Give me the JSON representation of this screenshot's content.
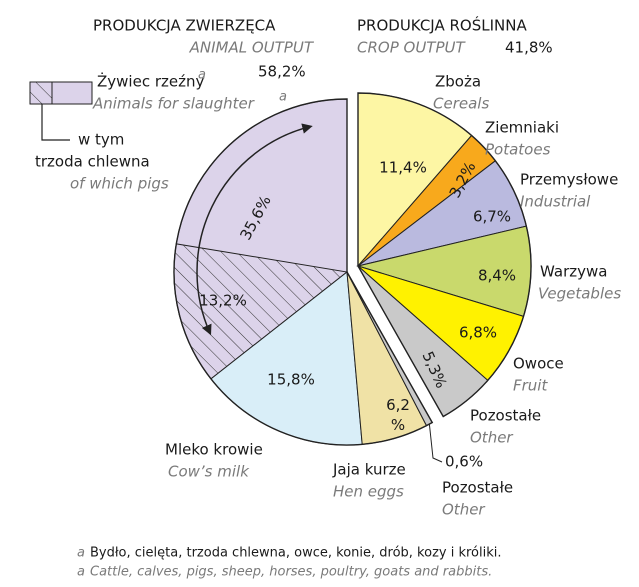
{
  "chart_data": {
    "type": "pie",
    "groups": [
      {
        "title": "PRODUKCJA ZWIERZĘCA",
        "subtitle": "ANIMAL OUTPUT",
        "value": 58.2,
        "value_label": "58,2%",
        "categories": [
          "Żywiec rzeźny",
          "Mleko krowie",
          "Jaja kurze",
          "Pozostałe"
        ],
        "categories_en": [
          "Animals for slaughter",
          "Cow’s milk",
          "Hen eggs",
          "Other"
        ],
        "values": [
          35.6,
          15.8,
          6.2,
          0.6
        ],
        "value_labels": [
          "35,6%",
          "15,8%",
          "6,2\n%",
          "0,6%"
        ],
        "colors": [
          "#dcd3ea",
          "#d9eef8",
          "#f0e2a6",
          "#c9c9c9"
        ],
        "sub": {
          "labels": [
            "w tym",
            "trzoda chlewna"
          ],
          "label_en": "of which pigs",
          "value": 13.2,
          "value_label": "13,2%"
        }
      },
      {
        "title": "PRODUKCJA ROŚLINNA",
        "subtitle": "CROP OUTPUT",
        "value": 41.8,
        "value_label": "41,8%",
        "categories": [
          "Zboża",
          "Ziemniaki",
          "Przemysłowe",
          "Warzywa",
          "Owoce",
          "Pozostałe"
        ],
        "categories_en": [
          "Cereals",
          "Potatoes",
          "Industrial",
          "Vegetables",
          "Fruit",
          "Other"
        ],
        "values": [
          11.4,
          3.2,
          6.7,
          8.4,
          6.8,
          5.3
        ],
        "value_labels": [
          "11,4%",
          "3,2%",
          "6,7%",
          "8,4%",
          "6,8%",
          "5,3%"
        ],
        "colors": [
          "#fdf6a4",
          "#f8a91c",
          "#babadf",
          "#c9d96c",
          "#fff200",
          "#c9c9c9"
        ]
      }
    ],
    "footnote": {
      "marker": "a",
      "text": "Bydło, cielęta, trzoda chlewna, owce, konie, drób, kozy i króliki.",
      "text_en": "Cattle, calves, pigs, sheep, horses, poultry, goats and rabbits."
    }
  }
}
